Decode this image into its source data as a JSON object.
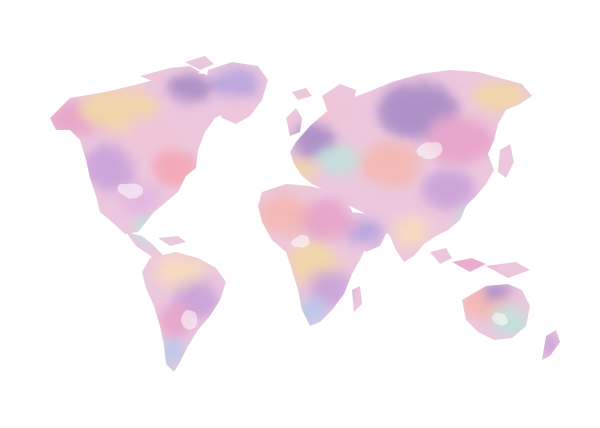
{
  "artwork": {
    "subject": "world-map",
    "style": "watercolor",
    "background": "#ffffff",
    "palette": [
      "#e7a3c8",
      "#c9a3d9",
      "#f4b8b0",
      "#b9c9ea",
      "#f6dcc0",
      "#f0c6d8",
      "#a98cc6",
      "#bfe3dc",
      "#f2d7a6",
      "#b7a4de"
    ]
  }
}
